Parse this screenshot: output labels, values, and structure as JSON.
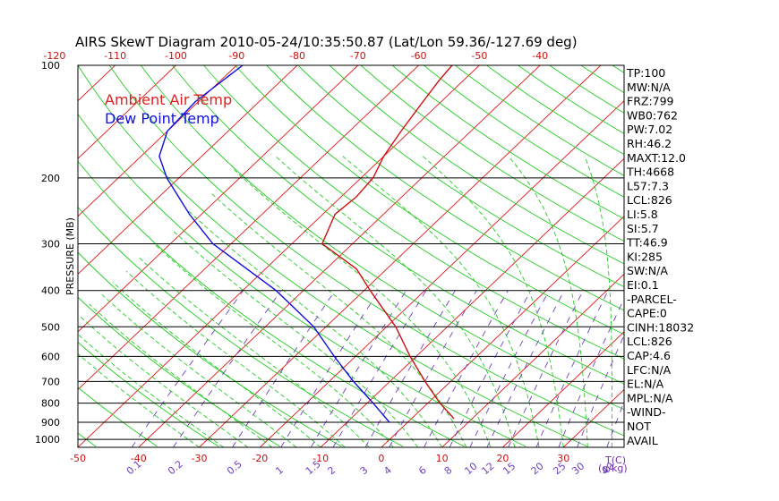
{
  "chart_data": {
    "type": "line",
    "title": "AIRS SkewT Diagram 2010-05-24/10:35:50.87 (Lat/Lon 59.36/-127.69 deg)",
    "ylabel": "PRESSURE (MB)",
    "xlabel_bottom": "T(C)",
    "mixing_ratio_label": "(g/kg)",
    "y_scale": "log",
    "ylim": [
      1050,
      100
    ],
    "xlim": [
      -50,
      40
    ],
    "pressure_levels": [
      100,
      200,
      300,
      400,
      500,
      600,
      700,
      800,
      900,
      1000
    ],
    "top_ticks": [
      -120,
      -110,
      -100,
      -90,
      -80,
      -70,
      -60,
      -50,
      -40
    ],
    "bottom_ticks": [
      -50,
      -40,
      -30,
      -20,
      -10,
      0,
      10,
      20,
      30
    ],
    "mixing_ratio_ticks": [
      "0.1",
      "0.2",
      "0.5",
      "1",
      "1.5",
      "2",
      "3",
      "4",
      "6",
      "8",
      "10",
      "12",
      "15",
      "20",
      "25",
      "30",
      "40"
    ],
    "legend": [
      {
        "name": "Ambient Air Temp",
        "color": "#e02020"
      },
      {
        "name": "Dew Point Temp",
        "color": "#1010dd"
      }
    ],
    "series": [
      {
        "name": "Ambient Air Temp",
        "color": "#cc1010",
        "points": [
          {
            "p": 880,
            "t": 7.0
          },
          {
            "p": 800,
            "t": 2.0
          },
          {
            "p": 700,
            "t": -4.2
          },
          {
            "p": 600,
            "t": -11.0
          },
          {
            "p": 500,
            "t": -18.5
          },
          {
            "p": 400,
            "t": -29.0
          },
          {
            "p": 350,
            "t": -35.0
          },
          {
            "p": 300,
            "t": -45.0
          },
          {
            "p": 250,
            "t": -48.0
          },
          {
            "p": 225,
            "t": -47.5
          },
          {
            "p": 200,
            "t": -48.0
          },
          {
            "p": 175,
            "t": -50.0
          },
          {
            "p": 150,
            "t": -51.5
          },
          {
            "p": 125,
            "t": -53.0
          },
          {
            "p": 110,
            "t": -54.0
          },
          {
            "p": 100,
            "t": -54.5
          }
        ]
      },
      {
        "name": "Dew Point Temp",
        "color": "#1010dd",
        "points": [
          {
            "p": 900,
            "t": -3.0
          },
          {
            "p": 800,
            "t": -9.0
          },
          {
            "p": 700,
            "t": -16.0
          },
          {
            "p": 600,
            "t": -23.5
          },
          {
            "p": 500,
            "t": -32.0
          },
          {
            "p": 400,
            "t": -44.5
          },
          {
            "p": 300,
            "t": -63.0
          },
          {
            "p": 250,
            "t": -72.0
          },
          {
            "p": 200,
            "t": -82.0
          },
          {
            "p": 175,
            "t": -87.0
          },
          {
            "p": 150,
            "t": -90.0
          },
          {
            "p": 125,
            "t": -90.5
          },
          {
            "p": 100,
            "t": -89.0
          }
        ]
      }
    ],
    "indices": [
      "TP:100",
      "MW:N/A",
      "FRZ:799",
      "WB0:762",
      "PW:7.02",
      "RH:46.2",
      "MAXT:12.0",
      "TH:4668",
      "L57:7.3",
      "LCL:826",
      "LI:5.8",
      "SI:5.7",
      "TT:46.9",
      "KI:285",
      "SW:N/A",
      "EI:0.1",
      "-PARCEL-",
      "CAPE:0",
      "CINH:18032",
      "LCL:826",
      "CAP:4.6",
      "LFC:N/A",
      "EL:N/A",
      "MPL:N/A",
      "-WIND-",
      "NOT",
      "AVAIL"
    ],
    "colors": {
      "isotherm": "#e01818",
      "dry_adiabat": "#22cc22",
      "moist_adiabat": "#22cc22",
      "mixing_ratio": "#7040c0",
      "axis": "#000000",
      "tick_top_bottom": "#cc1010",
      "legend_air": "#e02020",
      "legend_dew": "#1010dd"
    }
  }
}
